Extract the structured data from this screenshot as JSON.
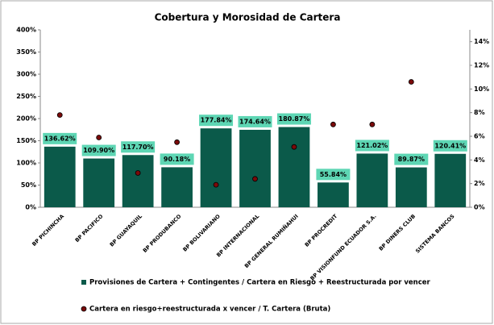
{
  "chart_data": {
    "type": "bar",
    "title": "Cobertura y Morosidad de Cartera",
    "categories": [
      "BP PICHINCHA",
      "BP PACIFICO",
      "BP GUAYAQUIL",
      "BP PRODUBANCO",
      "BP BOLIVARIANO",
      "BP INTERNACIONAL",
      "BP GENERAL RUMIÑAHUI",
      "BP PROCREDIT",
      "BP VISIONFUND ECUADOR S.A.",
      "BP DINERS CLUB",
      "SISTEMA BANCOS"
    ],
    "series": [
      {
        "name": "Provisiones de Cartera + Contingentes / Cartera en Riesgo + Reestructurada por vencer",
        "type": "bar",
        "color": "#0b5a4a",
        "values": [
          136.62,
          109.9,
          117.7,
          90.18,
          177.84,
          174.64,
          180.87,
          55.84,
          121.02,
          89.87,
          120.41
        ],
        "value_labels": [
          "136.62%",
          "109.90%",
          "117.70%",
          "90.18%",
          "177.84%",
          "174.64%",
          "180.87%",
          "55.84%",
          "121.02%",
          "89.87%",
          "120.41%"
        ]
      },
      {
        "name": "Cartera en riesgo+reestructurada x vencer / T. Cartera (Bruta)",
        "type": "scatter",
        "color": "#7a0a0a",
        "axis": "y2",
        "values": [
          7.8,
          5.9,
          2.9,
          5.5,
          1.9,
          2.4,
          5.1,
          7.0,
          7.0,
          10.6,
          null
        ]
      }
    ],
    "ylim": [
      0,
      400
    ],
    "yticks": [
      {
        "value": 0,
        "label": "0%"
      },
      {
        "value": 50,
        "label": "50%"
      },
      {
        "value": 100,
        "label": "100%"
      },
      {
        "value": 150,
        "label": "150%"
      },
      {
        "value": 200,
        "label": "200%"
      },
      {
        "value": 250,
        "label": "250%"
      },
      {
        "value": 300,
        "label": "300%"
      },
      {
        "value": 350,
        "label": "350%"
      },
      {
        "value": 400,
        "label": "400%"
      }
    ],
    "y2lim": [
      0,
      15
    ],
    "y2ticks": [
      {
        "value": 0,
        "label": "0%"
      },
      {
        "value": 2,
        "label": "2%"
      },
      {
        "value": 4,
        "label": "4%"
      },
      {
        "value": 6,
        "label": "6%"
      },
      {
        "value": 8,
        "label": "8%"
      },
      {
        "value": 10,
        "label": "10%"
      },
      {
        "value": 12,
        "label": "12%"
      },
      {
        "value": 14,
        "label": "14%"
      }
    ],
    "grid": false,
    "label_color": "#5ed6b4"
  }
}
